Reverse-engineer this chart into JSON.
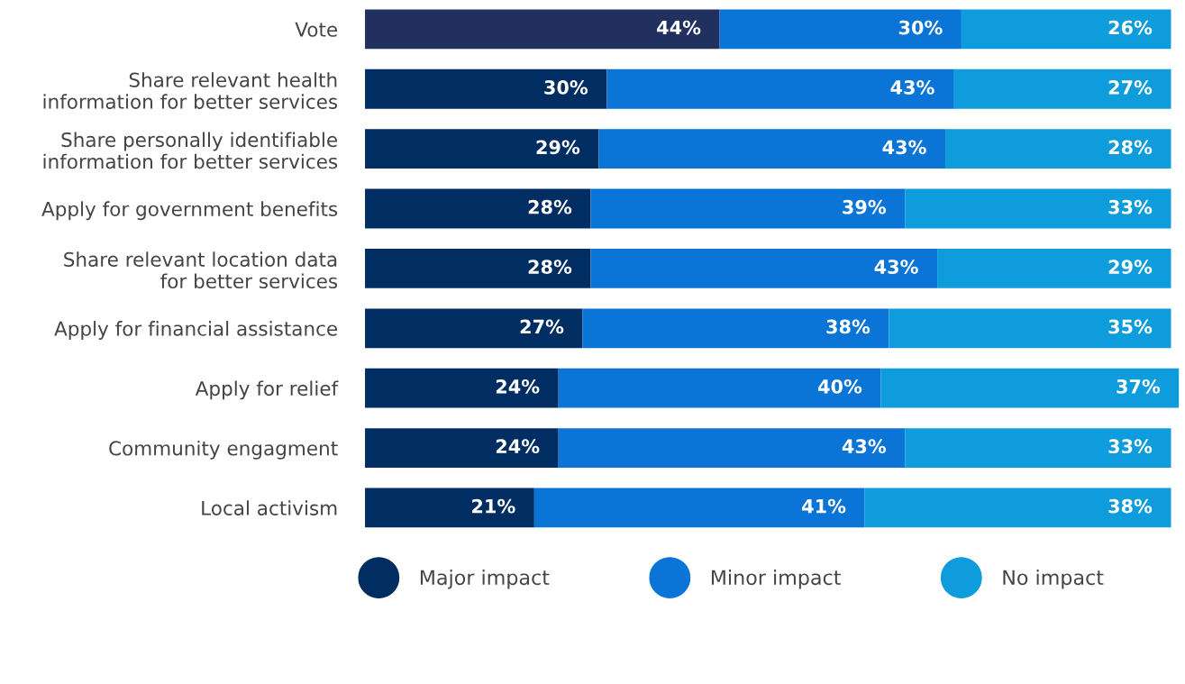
{
  "chart_data": {
    "type": "bar",
    "orientation": "horizontal",
    "stacked": true,
    "tick_labels": "y",
    "grid": false,
    "legend": "bottom",
    "categories": [
      "Vote",
      "Share relevant health\ninformation for better services",
      "Share personally identifiable\ninformation for better services",
      "Apply for government benefits",
      "Share relevant location data\nfor better services",
      "Apply for financial assistance",
      "Apply for relief",
      "Community engagment",
      "Local activism"
    ],
    "series": [
      {
        "name": "Major impact",
        "color": "#002d62",
        "colors": [
          "#21305e",
          "#002d62",
          "#002d62",
          "#002d62",
          "#002d62",
          "#002d62",
          "#002d62",
          "#002d62",
          "#002d62"
        ],
        "values": [
          44,
          30,
          29,
          28,
          28,
          27,
          24,
          24,
          21
        ],
        "value_labels": [
          "44%",
          "30%",
          "29%",
          "28%",
          "28%",
          "27%",
          "24%",
          "24%",
          "21%"
        ]
      },
      {
        "name": "Minor impact",
        "color": "#0a75d6",
        "values": [
          30,
          43,
          43,
          39,
          43,
          38,
          40,
          43,
          41
        ],
        "value_labels": [
          "30%",
          "43%",
          "43%",
          "39%",
          "43%",
          "38%",
          "40%",
          "43%",
          "41%"
        ]
      },
      {
        "name": "No impact",
        "color": "#0e9cdc",
        "values": [
          26,
          27,
          28,
          33,
          29,
          35,
          37,
          33,
          38
        ],
        "value_labels": [
          "26%",
          "27%",
          "28%",
          "33%",
          "29%",
          "35%",
          "37%",
          "33%",
          "38%"
        ]
      }
    ]
  }
}
